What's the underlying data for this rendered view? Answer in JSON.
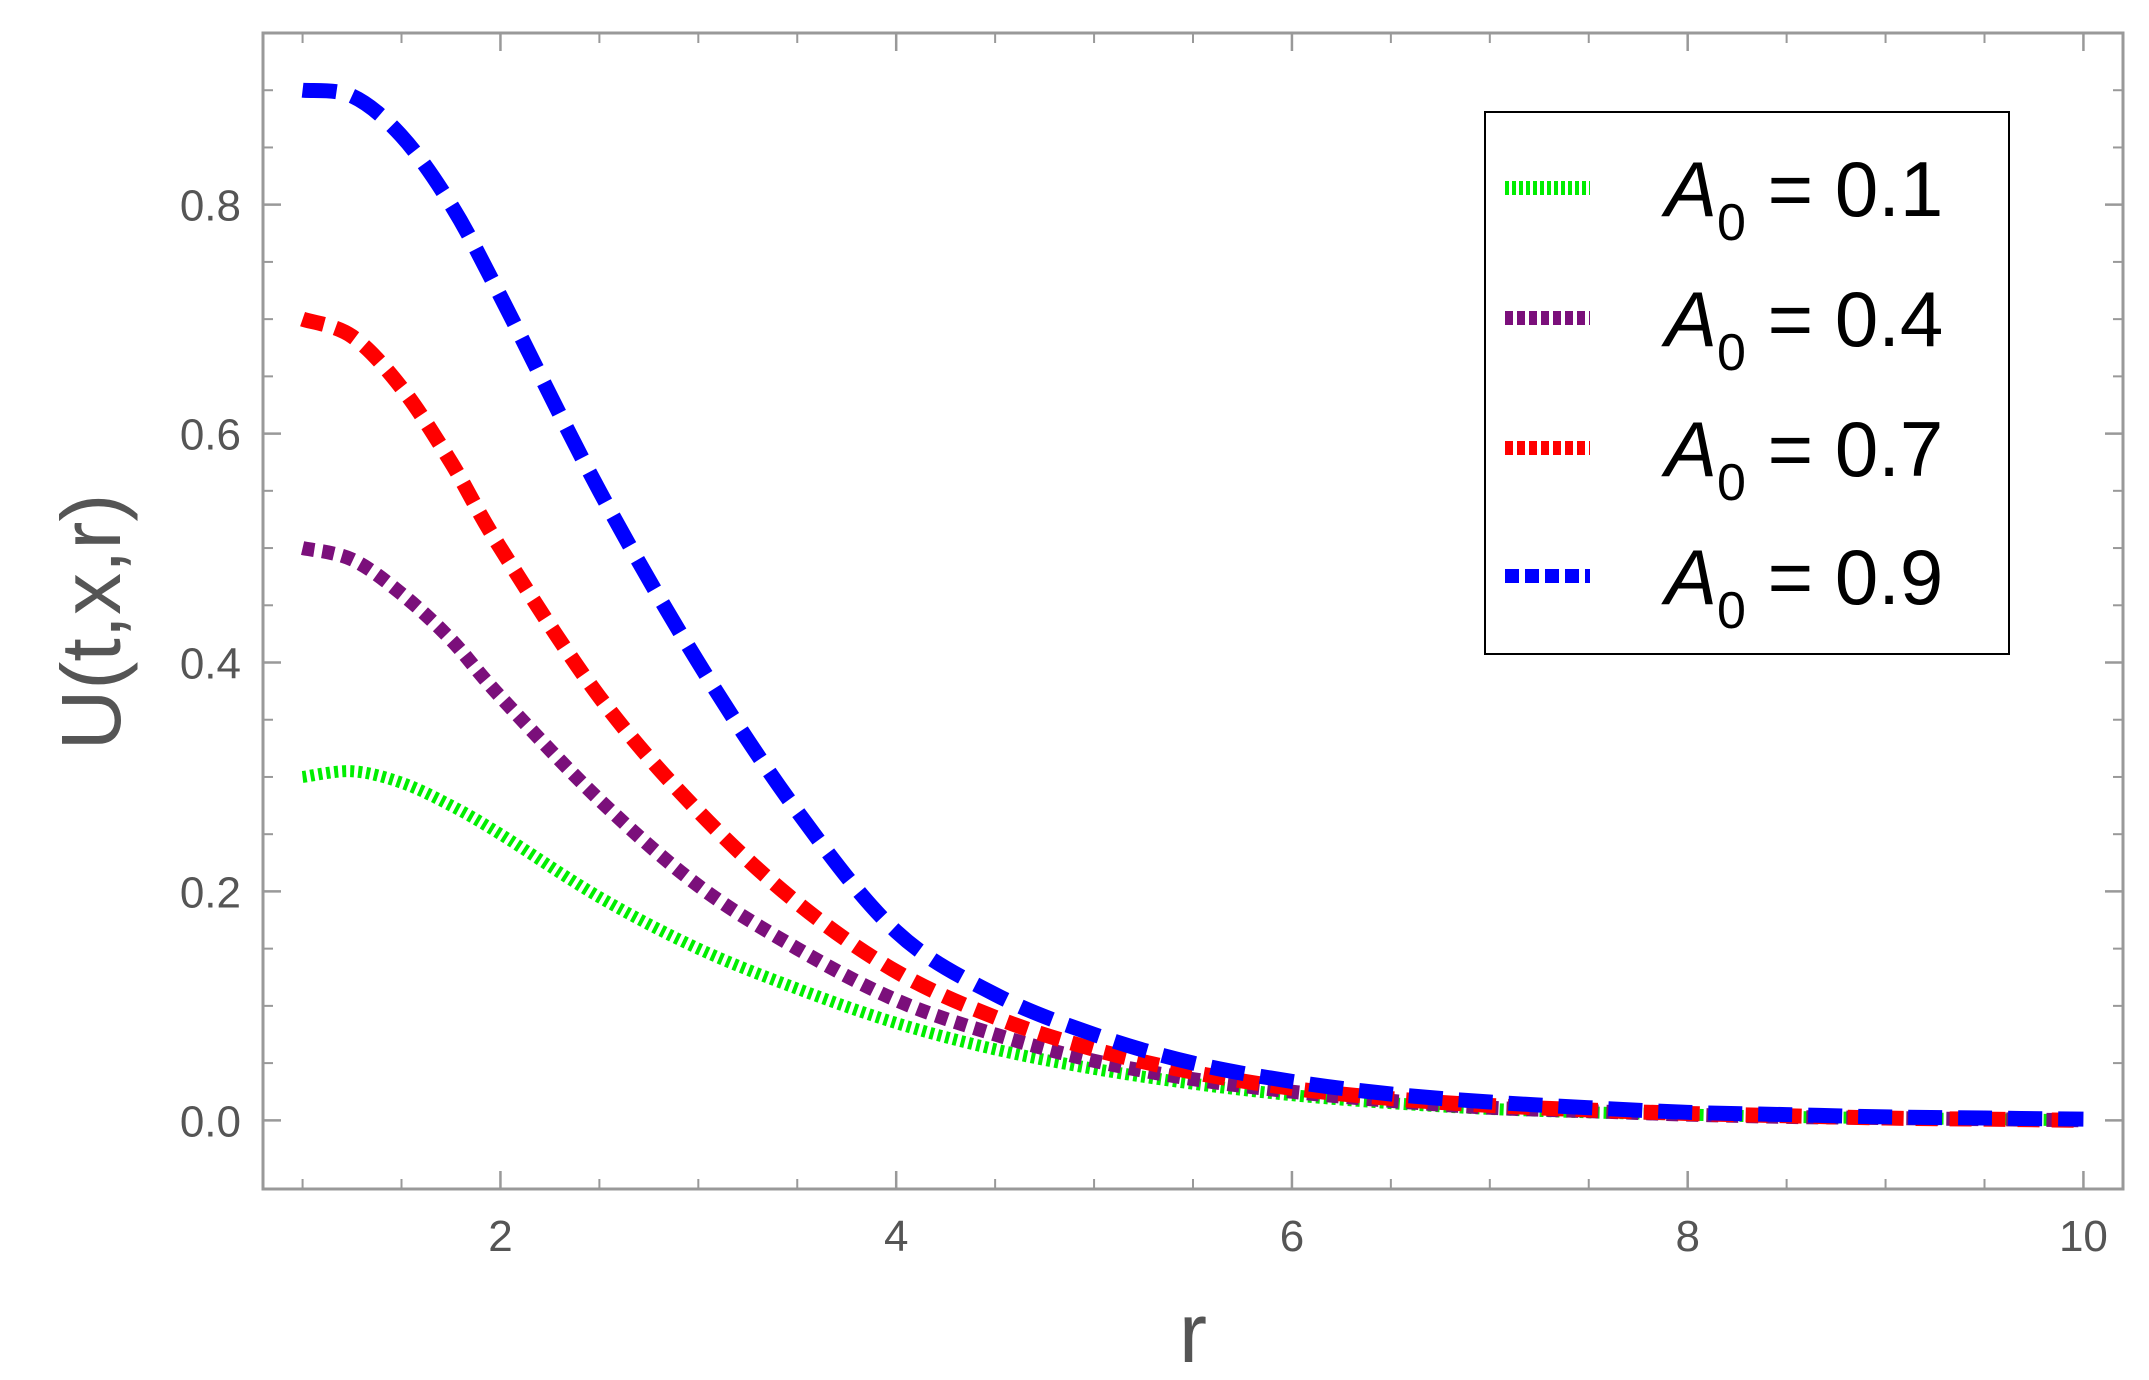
{
  "chart_data": {
    "type": "line",
    "title": "",
    "xlabel": "r",
    "ylabel": "U(t,x,r)",
    "xlim": [
      0.8,
      10.2
    ],
    "ylim": [
      -0.06,
      0.95
    ],
    "x_ticks": [
      2,
      4,
      6,
      8,
      10
    ],
    "x_tick_labels": [
      "2",
      "4",
      "6",
      "8",
      "10"
    ],
    "y_ticks": [
      0.0,
      0.2,
      0.4,
      0.6,
      0.8
    ],
    "y_tick_labels": [
      "0.0",
      "0.2",
      "0.4",
      "0.6",
      "0.8"
    ],
    "grid": false,
    "legend_position": "top-right",
    "x": [
      1.0,
      1.25,
      1.5,
      1.75,
      2.0,
      2.5,
      3.0,
      3.5,
      4.0,
      4.5,
      5.0,
      5.5,
      6.0,
      6.5,
      7.0,
      7.5,
      8.0,
      8.5,
      9.0,
      9.5,
      10.0
    ],
    "series": [
      {
        "name": "A0 = 0.1",
        "legend_label": "A",
        "legend_sub": "0",
        "legend_value": " = 0.1",
        "color": "#00ee00",
        "dash": "dotted",
        "values": [
          0.3,
          0.305,
          0.295,
          0.275,
          0.25,
          0.195,
          0.15,
          0.115,
          0.085,
          0.062,
          0.045,
          0.032,
          0.022,
          0.015,
          0.01,
          0.007,
          0.005,
          0.003,
          0.002,
          0.001,
          0.0
        ]
      },
      {
        "name": "A0 = 0.4",
        "legend_label": "A",
        "legend_sub": "0",
        "legend_value": " = 0.4",
        "color": "#7b0f7b",
        "dash": "short-dash",
        "values": [
          0.5,
          0.49,
          0.46,
          0.42,
          0.37,
          0.28,
          0.205,
          0.15,
          0.105,
          0.075,
          0.052,
          0.036,
          0.025,
          0.017,
          0.011,
          0.008,
          0.005,
          0.003,
          0.002,
          0.001,
          0.0
        ]
      },
      {
        "name": "A0 = 0.7",
        "legend_label": "A",
        "legend_sub": "0",
        "legend_value": " = 0.7",
        "color": "#ff0000",
        "dash": "medium-dash",
        "values": [
          0.7,
          0.685,
          0.64,
          0.575,
          0.5,
          0.37,
          0.27,
          0.19,
          0.13,
          0.09,
          0.062,
          0.042,
          0.028,
          0.019,
          0.013,
          0.009,
          0.006,
          0.004,
          0.002,
          0.001,
          0.0
        ]
      },
      {
        "name": "A0 = 0.9",
        "legend_label": "A",
        "legend_sub": "0",
        "legend_value": " = 0.9",
        "color": "#0000ff",
        "dash": "long-dash",
        "values": [
          0.9,
          0.895,
          0.86,
          0.8,
          0.72,
          0.55,
          0.4,
          0.27,
          0.165,
          0.11,
          0.075,
          0.05,
          0.034,
          0.023,
          0.016,
          0.011,
          0.007,
          0.005,
          0.003,
          0.002,
          0.001
        ]
      }
    ]
  }
}
